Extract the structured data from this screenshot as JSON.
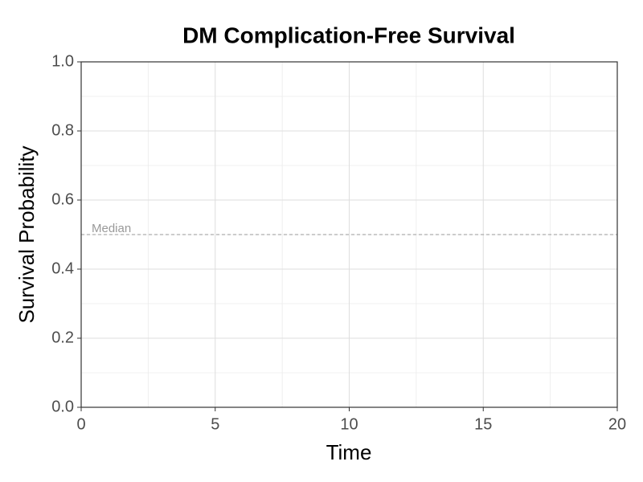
{
  "chart_data": {
    "type": "line",
    "title": "DM Complication-Free Survival",
    "x_label": "Time",
    "y_label": "Survival Probability",
    "series": [],
    "xlim": [
      0,
      20
    ],
    "xticks": [
      0,
      5,
      10,
      15,
      20
    ],
    "ylim": [
      0,
      1
    ],
    "yticks": [
      {
        "value": 0,
        "label": "0.0"
      },
      0.2,
      0.4,
      0.6,
      0.8,
      {
        "value": 1,
        "label": "1.0"
      }
    ],
    "grid": true,
    "minor_grid": true,
    "reference_lines": [
      {
        "y": 0.5,
        "label": "Median",
        "color": "#999999"
      }
    ]
  }
}
